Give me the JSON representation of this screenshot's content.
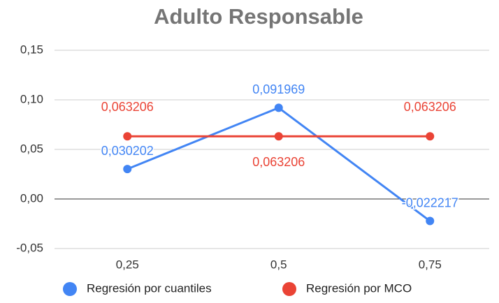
{
  "chart_data": {
    "type": "line",
    "title": "Adulto Responsable",
    "categories": [
      "0,25",
      "0,5",
      "0,75"
    ],
    "series": [
      {
        "name": "Regresión por cuantiles",
        "color": "#4285f4",
        "values": [
          0.030202,
          0.091969,
          -0.022217
        ],
        "value_labels": [
          "0,030202",
          "0,091969",
          "-0,022217"
        ]
      },
      {
        "name": "Regresión por MCO",
        "color": "#ea4335",
        "values": [
          0.063206,
          0.063206,
          0.063206
        ],
        "value_labels": [
          "0,063206",
          "0,063206",
          "0,063206"
        ]
      }
    ],
    "ylim": [
      -0.05,
      0.15
    ],
    "yticks": [
      {
        "value": -0.05,
        "label": "-0,05"
      },
      {
        "value": 0,
        "label": "0,00"
      },
      {
        "value": 0.05,
        "label": "0,05"
      },
      {
        "value": 0.1,
        "label": "0,10"
      },
      {
        "value": 0.15,
        "label": "0,15"
      }
    ],
    "grid": true,
    "legend": "bottom"
  }
}
